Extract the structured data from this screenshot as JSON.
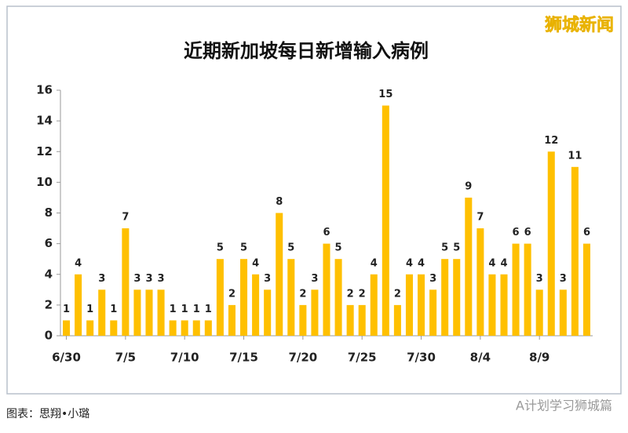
{
  "chart_data": {
    "type": "bar",
    "title": "近期新加坡每日新增输入病例",
    "categories": [
      "6/30",
      null,
      null,
      null,
      null,
      "7/5",
      null,
      null,
      null,
      null,
      "7/10",
      null,
      null,
      null,
      null,
      "7/15",
      null,
      null,
      null,
      null,
      "7/20",
      null,
      null,
      null,
      null,
      "7/25",
      null,
      null,
      null,
      null,
      "7/30",
      null,
      null,
      null,
      null,
      "8/4",
      null,
      null,
      null,
      null,
      "8/9",
      null,
      null,
      null,
      null
    ],
    "values": [
      1,
      4,
      1,
      3,
      1,
      7,
      3,
      3,
      3,
      1,
      1,
      1,
      1,
      5,
      2,
      5,
      4,
      3,
      8,
      5,
      2,
      3,
      6,
      5,
      2,
      2,
      4,
      15,
      2,
      4,
      4,
      3,
      5,
      5,
      9,
      7,
      4,
      4,
      6,
      6,
      3,
      12,
      3,
      11,
      6
    ],
    "color": "#ffc000",
    "ylim": [
      0,
      16
    ],
    "yticks": [
      0,
      2,
      4,
      6,
      8,
      10,
      12,
      14,
      16
    ],
    "grid": false
  },
  "brand": "狮城新闻",
  "credit": "图表：思翔•小璐",
  "watermark": "A计划学习狮城篇"
}
